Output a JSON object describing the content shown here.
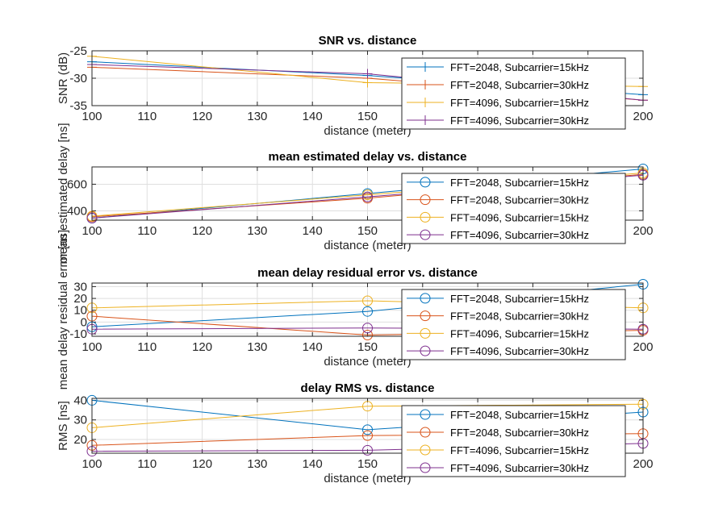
{
  "colors": [
    "#0072BD",
    "#D95319",
    "#EDB120",
    "#7E2F8E"
  ],
  "legend_labels": [
    "FFT=2048, Subcarrier=15kHz",
    "FFT=2048, Subcarrier=30kHz",
    "FFT=4096, Subcarrier=15kHz",
    "FFT=4096, Subcarrier=30kHz"
  ],
  "chart_data": [
    {
      "type": "line",
      "title": "SNR vs. distance",
      "xlabel": "distance (meter)",
      "ylabel": "SNR (dB)",
      "marker": "plus",
      "x": [
        100,
        150,
        200
      ],
      "xlim": [
        100,
        200
      ],
      "xticks": [
        100,
        110,
        120,
        130,
        140,
        150,
        160,
        170,
        180,
        190,
        200
      ],
      "ylim": [
        -35,
        -25
      ],
      "yticks": [
        -35,
        -30,
        -25
      ],
      "series": [
        {
          "name": "FFT=2048, Subcarrier=15kHz",
          "values": [
            -27,
            -29.5,
            -33
          ]
        },
        {
          "name": "FFT=2048, Subcarrier=30kHz",
          "values": [
            -28,
            -30,
            -34
          ]
        },
        {
          "name": "FFT=4096, Subcarrier=15kHz",
          "values": [
            -26,
            -30.8,
            -31.5
          ]
        },
        {
          "name": "FFT=4096, Subcarrier=30kHz",
          "values": [
            -27.5,
            -29.2,
            -34
          ]
        }
      ]
    },
    {
      "type": "line",
      "title": "mean estimated delay vs. distance",
      "xlabel": "distance (meter)",
      "ylabel": "mean estimated delay [ns]",
      "marker": "circle",
      "x": [
        100,
        150,
        200
      ],
      "xlim": [
        100,
        200
      ],
      "xticks": [
        100,
        110,
        120,
        130,
        140,
        150,
        160,
        170,
        180,
        190,
        200
      ],
      "ylim": [
        330,
        730
      ],
      "yticks": [
        400,
        600
      ],
      "series": [
        {
          "name": "FFT=2048, Subcarrier=15kHz",
          "values": [
            345,
            530,
            715
          ]
        },
        {
          "name": "FFT=2048, Subcarrier=30kHz",
          "values": [
            355,
            495,
            675
          ]
        },
        {
          "name": "FFT=4096, Subcarrier=15kHz",
          "values": [
            360,
            520,
            685
          ]
        },
        {
          "name": "FFT=4096, Subcarrier=30kHz",
          "values": [
            345,
            505,
            668
          ]
        }
      ]
    },
    {
      "type": "line",
      "title": "mean delay residual error vs. distance",
      "xlabel": "distance (meter)",
      "ylabel": "mean delay residual error [ns]",
      "marker": "circle",
      "x": [
        100,
        150,
        200
      ],
      "xlim": [
        100,
        200
      ],
      "xticks": [
        100,
        110,
        120,
        130,
        140,
        150,
        160,
        170,
        180,
        190,
        200
      ],
      "ylim": [
        -12,
        33
      ],
      "yticks": [
        -10,
        0,
        10,
        20,
        30
      ],
      "series": [
        {
          "name": "FFT=2048, Subcarrier=15kHz",
          "values": [
            -4,
            9,
            32
          ]
        },
        {
          "name": "FFT=2048, Subcarrier=30kHz",
          "values": [
            5,
            -11,
            -7
          ]
        },
        {
          "name": "FFT=4096, Subcarrier=15kHz",
          "values": [
            12,
            18,
            12
          ]
        },
        {
          "name": "FFT=4096, Subcarrier=30kHz",
          "values": [
            -6,
            -5,
            -6
          ]
        }
      ]
    },
    {
      "type": "line",
      "title": "delay RMS vs. distance",
      "xlabel": "distance (meter)",
      "ylabel": "RMS [ns]",
      "marker": "circle",
      "x": [
        100,
        150,
        200
      ],
      "xlim": [
        100,
        200
      ],
      "xticks": [
        100,
        110,
        120,
        130,
        140,
        150,
        160,
        170,
        180,
        190,
        200
      ],
      "ylim": [
        13,
        41
      ],
      "yticks": [
        20,
        30,
        40
      ],
      "series": [
        {
          "name": "FFT=2048, Subcarrier=15kHz",
          "values": [
            40,
            25,
            34
          ]
        },
        {
          "name": "FFT=2048, Subcarrier=30kHz",
          "values": [
            17,
            22,
            23
          ]
        },
        {
          "name": "FFT=4096, Subcarrier=15kHz",
          "values": [
            26,
            37,
            38
          ]
        },
        {
          "name": "FFT=4096, Subcarrier=30kHz",
          "values": [
            14,
            14.5,
            18
          ]
        }
      ]
    }
  ]
}
